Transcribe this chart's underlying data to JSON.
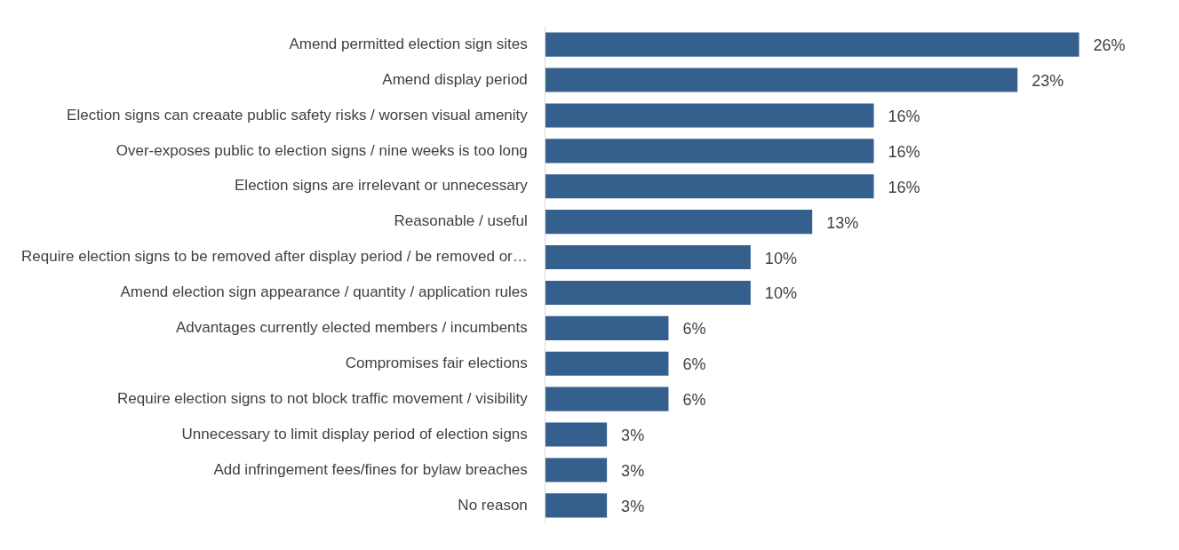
{
  "chart_data": {
    "type": "bar",
    "orientation": "horizontal",
    "categories": [
      "Amend permitted election sign sites",
      "Amend display period",
      "Election signs can creaate public safety risks / worsen visual amenity",
      "Over-exposes public to election signs / nine weeks is too long",
      "Election signs are irrelevant or unnecessary",
      "Reasonable / useful",
      "Require election signs to be removed after display period / be removed or…",
      "Amend election sign appearance / quantity / application rules",
      "Advantages currently elected members / incumbents",
      "Compromises fair elections",
      "Require election signs to not block traffic movement / visibility",
      "Unnecessary to limit display period of election signs",
      "Add infringement fees/fines for bylaw breaches",
      "No reason"
    ],
    "values": [
      26,
      23,
      16,
      16,
      16,
      13,
      10,
      10,
      6,
      6,
      6,
      3,
      3,
      3
    ],
    "value_labels": [
      "26%",
      "23%",
      "16%",
      "16%",
      "16%",
      "13%",
      "10%",
      "10%",
      "6%",
      "6%",
      "6%",
      "3%",
      "3%",
      "3%"
    ],
    "color": "#355f8d",
    "grid": false,
    "legend": false,
    "tick_labels": "y"
  }
}
